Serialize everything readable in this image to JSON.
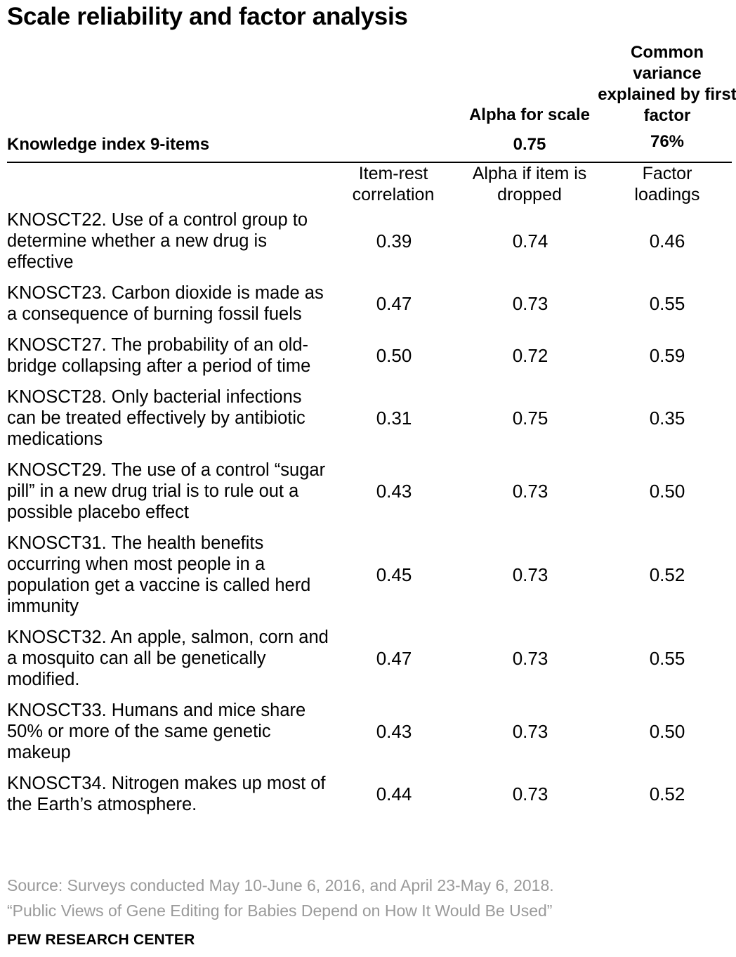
{
  "title": "Scale reliability and factor analysis",
  "header": {
    "label": "Knowledge index 9-items",
    "alpha_title": "Alpha for scale",
    "alpha_value": "0.75",
    "variance_title": "Common variance explained by first factor",
    "variance_value": "76%"
  },
  "columns": {
    "item_rest": "Item-rest\ncorrelation",
    "alpha_dropped": "Alpha if item is\ndropped",
    "factor": "Factor\nloadings"
  },
  "rows": [
    {
      "item": "KNOSCT22. Use of a control group to determine whether a new drug is effective",
      "item_rest": "0.39",
      "alpha_dropped": "0.74",
      "factor": "0.46"
    },
    {
      "item": "KNOSCT23. Carbon dioxide is made as a consequence of burning fossil fuels",
      "item_rest": "0.47",
      "alpha_dropped": "0.73",
      "factor": "0.55"
    },
    {
      "item": "KNOSCT27. The probability of an old-bridge collapsing after a period of time",
      "item_rest": "0.50",
      "alpha_dropped": "0.72",
      "factor": "0.59"
    },
    {
      "item": "KNOSCT28. Only bacterial infections can be treated effectively by antibiotic medications",
      "item_rest": "0.31",
      "alpha_dropped": "0.75",
      "factor": "0.35"
    },
    {
      "item": "KNOSCT29. The use of a control “sugar pill” in a new drug trial is to rule out a possible placebo effect",
      "item_rest": "0.43",
      "alpha_dropped": "0.73",
      "factor": "0.50"
    },
    {
      "item": "KNOSCT31. The health benefits occurring when most people in a population get a vaccine is called herd immunity",
      "item_rest": "0.45",
      "alpha_dropped": "0.73",
      "factor": "0.52"
    },
    {
      "item": "KNOSCT32. An apple, salmon, corn and a mosquito can all be genetically modified.",
      "item_rest": "0.47",
      "alpha_dropped": "0.73",
      "factor": "0.55"
    },
    {
      "item": "KNOSCT33. Humans and mice share 50% or more of the same genetic makeup",
      "item_rest": "0.43",
      "alpha_dropped": "0.73",
      "factor": "0.50"
    },
    {
      "item": "KNOSCT34. Nitrogen makes up most of the Earth’s atmosphere.",
      "item_rest": "0.44",
      "alpha_dropped": "0.73",
      "factor": "0.52"
    }
  ],
  "source": "Source: Surveys conducted May 10-June 6, 2016, and April 23-May 6, 2018.",
  "report": "“Public Views of Gene Editing for Babies Depend on How It Would Be Used”",
  "brand": "PEW RESEARCH CENTER"
}
